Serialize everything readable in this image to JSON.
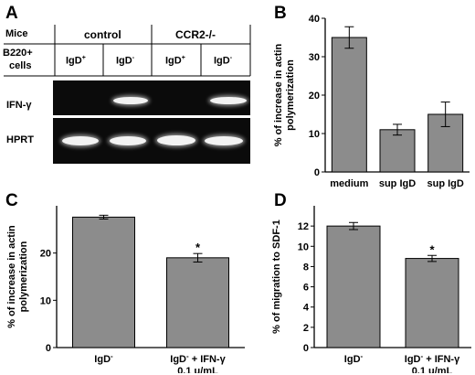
{
  "panelA": {
    "letter": "A",
    "rows": {
      "mice": "Mice",
      "b220_line1": "B220+",
      "b220_line2": "cells",
      "ifn": "IFN-γ",
      "hprt": "HPRT"
    },
    "groups": [
      "control",
      "CCR2-/-"
    ],
    "lanes": [
      {
        "base": "IgD",
        "sign": "+"
      },
      {
        "base": "IgD",
        "sign": "-"
      },
      {
        "base": "IgD",
        "sign": "+"
      },
      {
        "base": "IgD",
        "sign": "-"
      }
    ]
  },
  "panelB": {
    "letter": "B",
    "chart_data": {
      "type": "bar",
      "categories": [
        "medium",
        "sup IgD- control",
        "sup IgD- CCR2-/-"
      ],
      "category_lines": [
        [
          "medium"
        ],
        [
          "sup IgD",
          "control"
        ],
        [
          "sup IgD",
          "CCR2-/-"
        ]
      ],
      "category_superscripts": [
        "",
        "-",
        "-"
      ],
      "values": [
        35,
        11,
        15
      ],
      "errors": [
        2.8,
        1.4,
        3.2
      ],
      "ylabel_lines": [
        "% of increase in actin",
        "polymerization"
      ],
      "ylim": [
        0,
        40
      ],
      "yticks": [
        "0",
        "10",
        "20",
        "30",
        "40"
      ],
      "bar_color": "#8c8c8c"
    }
  },
  "panelC": {
    "letter": "C",
    "chart_data": {
      "type": "bar",
      "categories": [
        "IgD-",
        "IgD- + IFN-γ 0.1 u/mL"
      ],
      "category_lines": [
        [
          "IgD"
        ],
        [
          "IgD + IFN-γ",
          "0.1 u/mL"
        ]
      ],
      "category_superscripts": [
        "-",
        "-"
      ],
      "values": [
        27.6,
        19
      ],
      "errors": [
        0.4,
        0.9
      ],
      "annotations": [
        "",
        "*"
      ],
      "ylabel_lines": [
        "% of increase in actin",
        "polymerization"
      ],
      "ylim": [
        0,
        30
      ],
      "yticks": [
        "0",
        "10",
        "20"
      ],
      "bar_color": "#8c8c8c"
    }
  },
  "panelD": {
    "letter": "D",
    "chart_data": {
      "type": "bar",
      "categories": [
        "IgD-",
        "IgD- + IFN-γ 0.1 u/mL"
      ],
      "category_lines": [
        [
          "IgD"
        ],
        [
          "IgD + IFN-γ",
          "0.1 u/mL"
        ]
      ],
      "category_superscripts": [
        "-",
        "-"
      ],
      "values": [
        12,
        8.8
      ],
      "errors": [
        0.35,
        0.3
      ],
      "annotations": [
        "",
        "*"
      ],
      "ylabel_lines": [
        "% of migration to SDF-1"
      ],
      "ylim": [
        0,
        14
      ],
      "yticks": [
        "0",
        "2",
        "4",
        "6",
        "8",
        "10",
        "12"
      ],
      "bar_color": "#8c8c8c"
    }
  }
}
